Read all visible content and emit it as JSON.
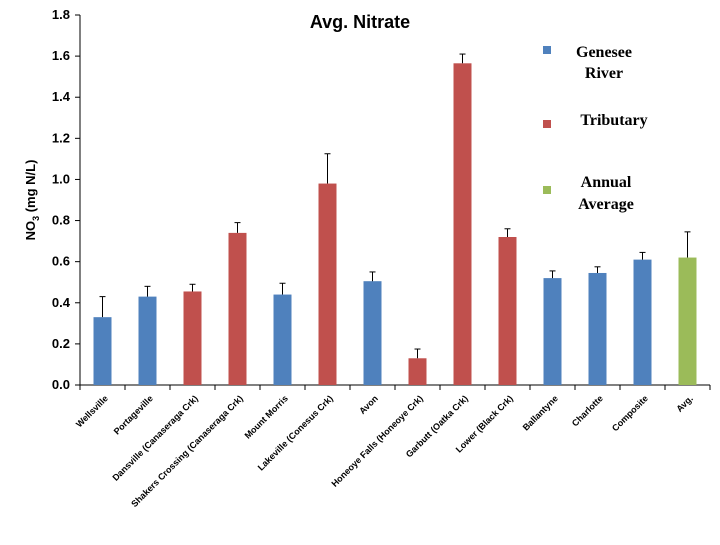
{
  "chart_data": {
    "type": "bar",
    "title": "Avg. Nitrate",
    "xlabel": "",
    "ylabel_main": "NO",
    "ylabel_sub": "3",
    "ylabel_rest": " (mg N/L)",
    "ylim": [
      0,
      1.8
    ],
    "yticks": [
      "0.0",
      "0.2",
      "0.4",
      "0.6",
      "0.8",
      "1.0",
      "1.2",
      "1.4",
      "1.6",
      "1.8"
    ],
    "grid": false,
    "colors": {
      "genesee": "#4f81bd",
      "tributary": "#c0504d",
      "annual": "#9bbb59"
    },
    "categories": [
      "Wellsville",
      "Portageville",
      "Dansville (Canaseraga Crk)",
      "Shakers Crossing  (Canaseraga Crk)",
      "Mount Morris",
      "Lakeville (Conesus Crk)",
      "Avon",
      "Honeoye Falls (Honeoye Crk)",
      "Garbutt (Oatka Crk)",
      "Lower (Black Crk)",
      "Ballantyne",
      "Charlotte",
      "Composite",
      "Avg."
    ],
    "groups": [
      "genesee",
      "genesee",
      "tributary",
      "tributary",
      "genesee",
      "tributary",
      "genesee",
      "tributary",
      "tributary",
      "tributary",
      "genesee",
      "genesee",
      "genesee",
      "annual"
    ],
    "values": [
      0.33,
      0.43,
      0.455,
      0.74,
      0.44,
      0.98,
      0.505,
      0.13,
      1.565,
      0.72,
      0.52,
      0.545,
      0.61,
      0.62
    ],
    "errors": [
      0.1,
      0.05,
      0.035,
      0.05,
      0.055,
      0.145,
      0.045,
      0.045,
      0.045,
      0.04,
      0.035,
      0.03,
      0.035,
      0.125
    ],
    "legend": [
      {
        "key": "genesee",
        "line1": "Genesee",
        "line2": "River"
      },
      {
        "key": "tributary",
        "line1": "Tributary",
        "line2": ""
      },
      {
        "key": "annual",
        "line1": "Annual",
        "line2": "Average"
      }
    ],
    "legend_position": "top-right"
  }
}
